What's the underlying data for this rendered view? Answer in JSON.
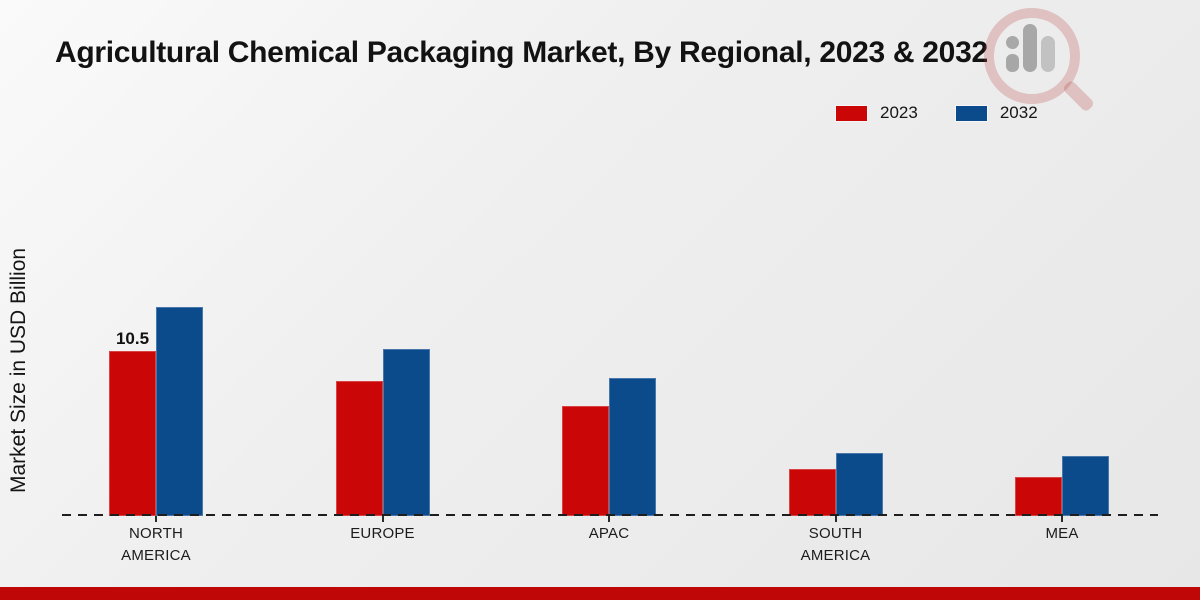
{
  "page": {
    "footer_bar_color": "#c00707"
  },
  "header": {
    "title": "Agricultural Chemical Packaging Market, By Regional, 2023 & 2032"
  },
  "y_axis": {
    "label": "Market Size in USD Billion"
  },
  "legend": {
    "items": [
      {
        "label": "2023",
        "color": "#cb0606"
      },
      {
        "label": "2032",
        "color": "#0b4b8c"
      }
    ]
  },
  "watermark": {
    "name": "magnifier-research-logo"
  },
  "chart_data": {
    "type": "bar",
    "title": "Agricultural Chemical Packaging Market, By Regional, 2023 & 2032",
    "xlabel": "",
    "ylabel": "Market Size in USD Billion",
    "categories": [
      "NORTH AMERICA",
      "EUROPE",
      "APAC",
      "SOUTH AMERICA",
      "MEA"
    ],
    "series": [
      {
        "name": "2023",
        "color": "#cb0606",
        "values": [
          10.5,
          8.6,
          7.0,
          3.0,
          2.5
        ]
      },
      {
        "name": "2032",
        "color": "#0b4b8c",
        "values": [
          13.3,
          10.6,
          8.8,
          4.0,
          3.8
        ]
      }
    ],
    "data_labels": [
      {
        "series": "2023",
        "category": "NORTH AMERICA",
        "text": "10.5"
      }
    ],
    "ylim": [
      0,
      14.5
    ],
    "grid": false,
    "y_ticks_visible": false,
    "legend_position": "top-right",
    "baseline_style": "dashed"
  }
}
